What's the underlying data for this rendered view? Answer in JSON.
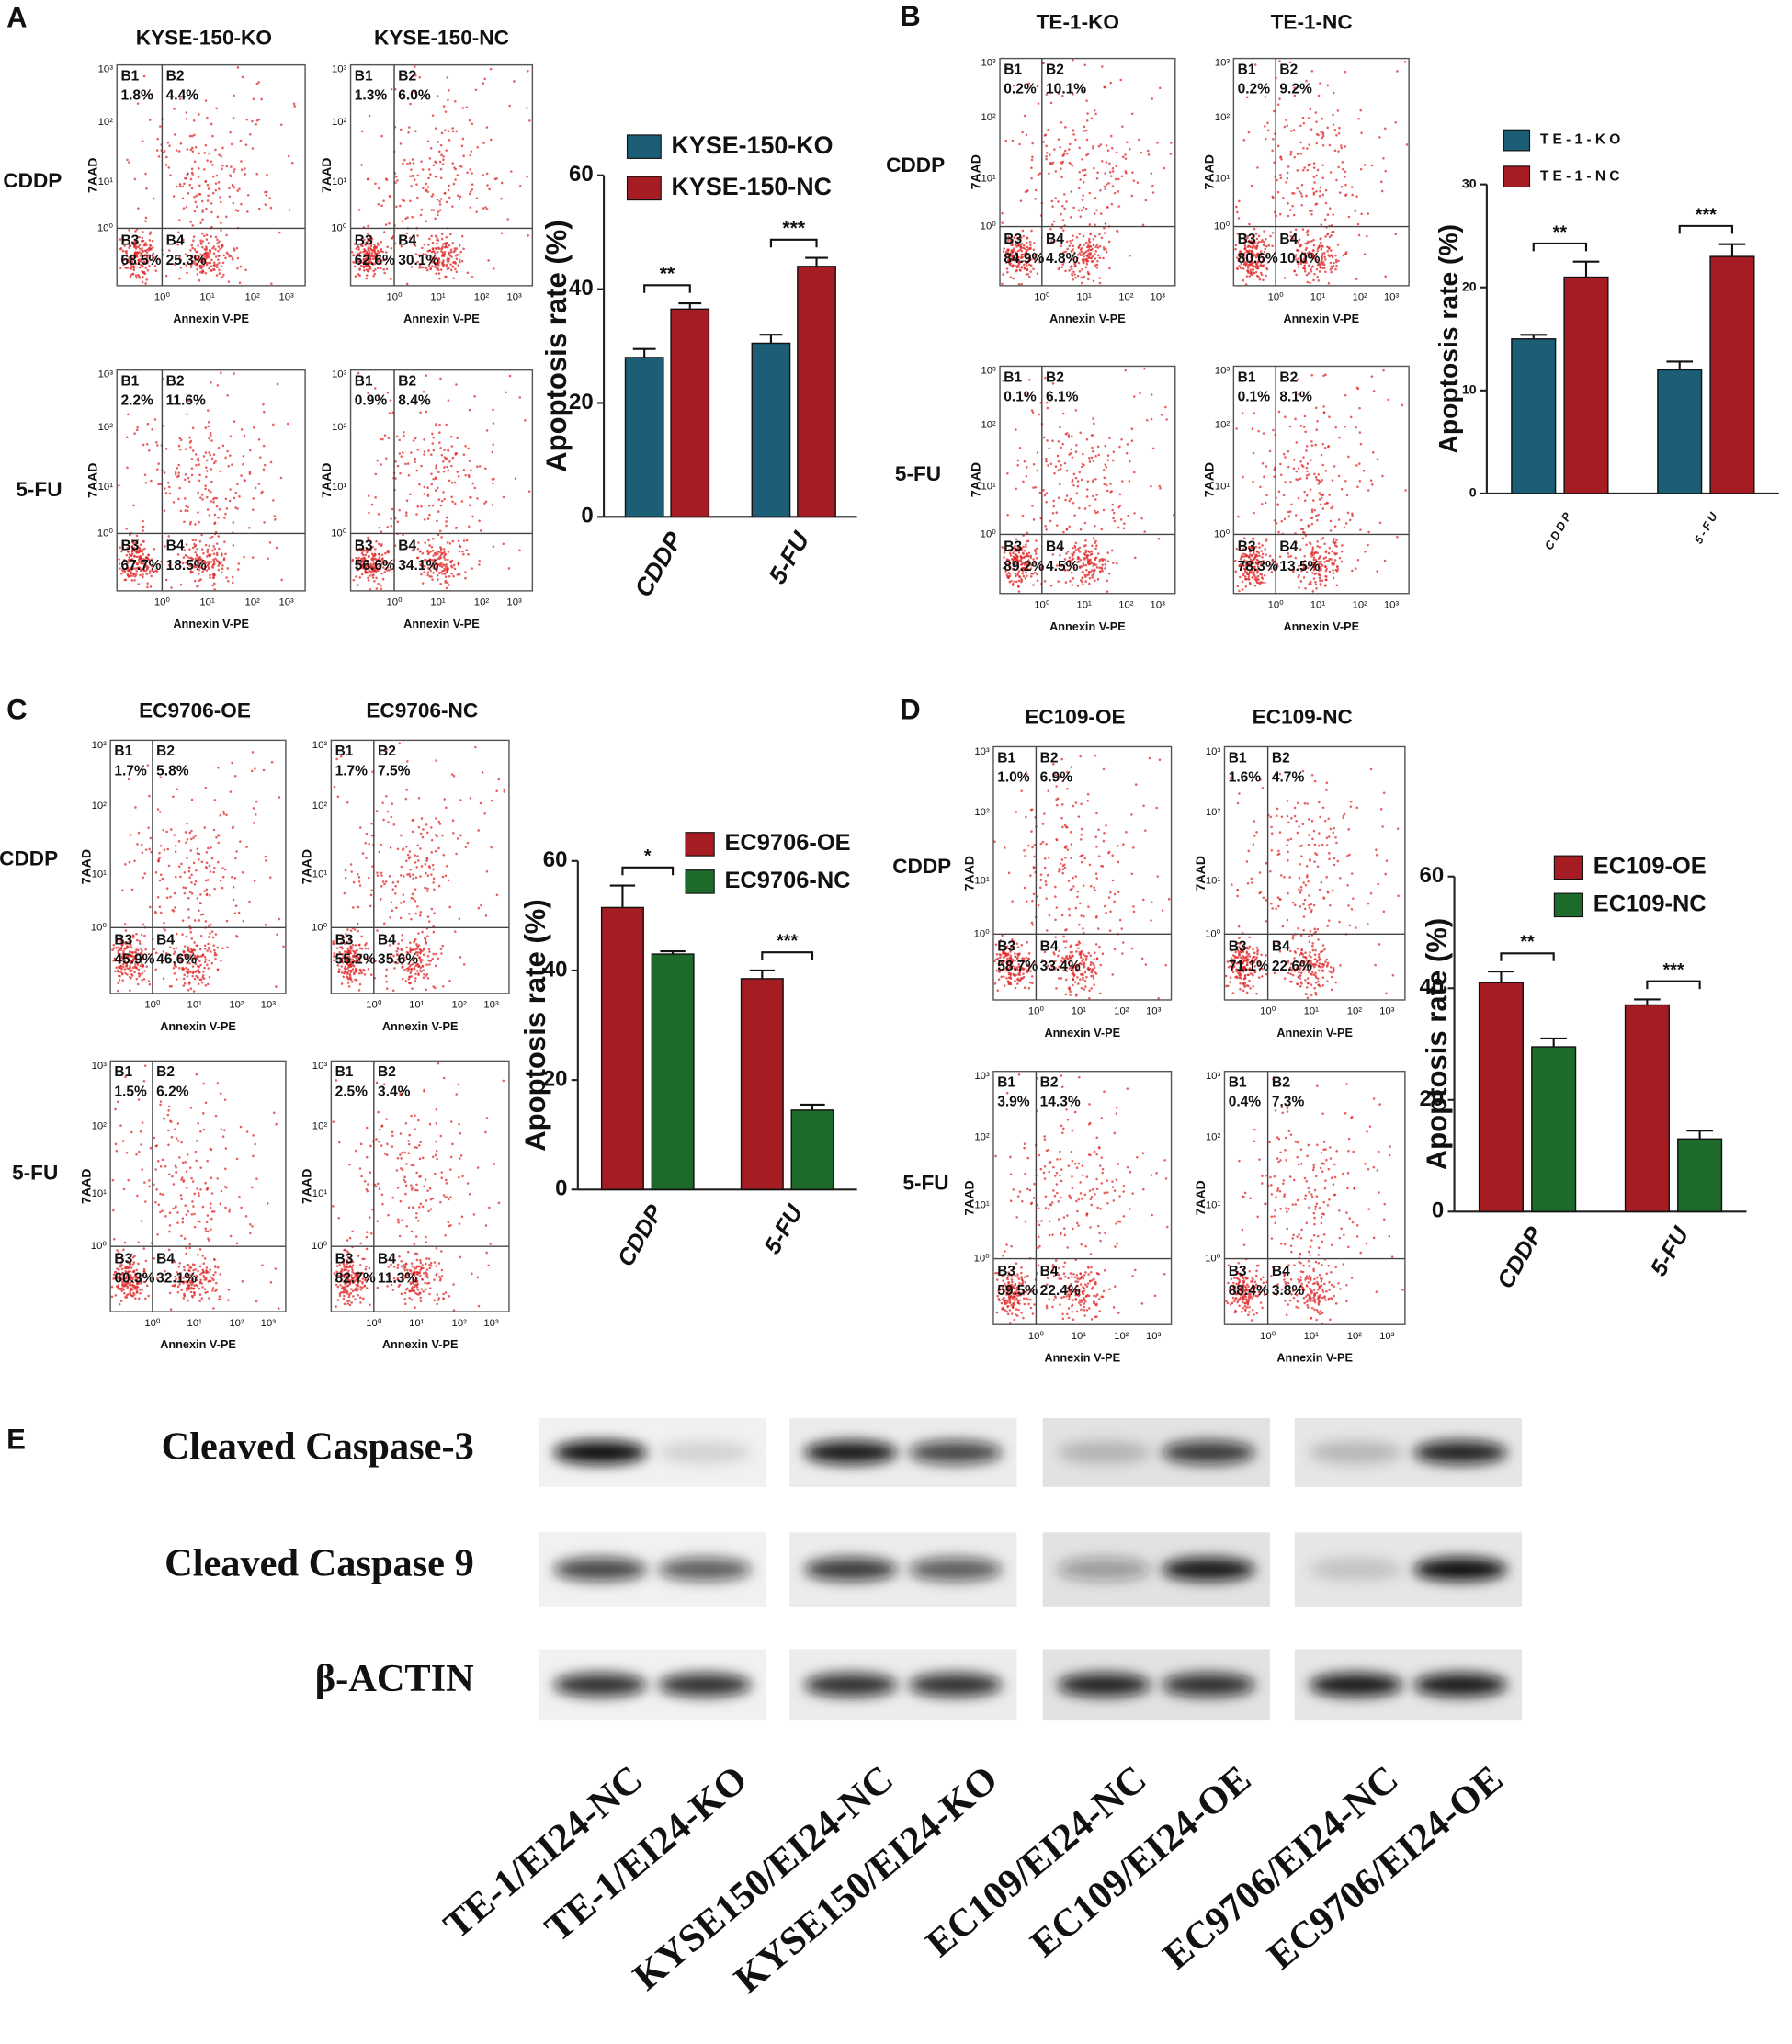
{
  "chart_data": [
    {
      "type": "bar",
      "ylabel": "Apoptosis rate (%)",
      "categories": [
        "CDDP",
        "5-FU"
      ],
      "series": [
        {
          "name": "KYSE-150-KO",
          "color": "#1b5e75",
          "values": [
            28,
            30.5
          ],
          "errors": [
            1.5,
            1.5
          ]
        },
        {
          "name": "KYSE-150-NC",
          "color": "#a51d23",
          "values": [
            36.5,
            44
          ],
          "errors": [
            1,
            1.5
          ]
        }
      ],
      "ylim": [
        0,
        60
      ],
      "yticks": [
        0,
        20,
        40,
        60
      ],
      "annotations": [
        "**",
        "***"
      ]
    },
    {
      "type": "bar",
      "ylabel": "Apoptosis rate (%)",
      "categories": [
        "CDDP",
        "5-FU"
      ],
      "series": [
        {
          "name": "TE-1-KO",
          "color": "#1b5e75",
          "values": [
            15,
            12
          ],
          "errors": [
            0.4,
            0.8
          ]
        },
        {
          "name": "TE-1-NC",
          "color": "#a51d23",
          "values": [
            21,
            23
          ],
          "errors": [
            1.5,
            1.2
          ]
        }
      ],
      "ylim": [
        0,
        30
      ],
      "yticks": [
        0,
        10,
        20,
        30
      ],
      "annotations": [
        "**",
        "***"
      ]
    },
    {
      "type": "bar",
      "ylabel": "Apoptosis rate (%)",
      "categories": [
        "CDDP",
        "5-FU"
      ],
      "series": [
        {
          "name": "EC9706-OE",
          "color": "#a51d23",
          "values": [
            51.5,
            38.5
          ],
          "errors": [
            4,
            1.5
          ]
        },
        {
          "name": "EC9706-NC",
          "color": "#1e6a2b",
          "values": [
            43,
            14.5
          ],
          "errors": [
            0.5,
            1
          ]
        }
      ],
      "ylim": [
        0,
        60
      ],
      "yticks": [
        0,
        20,
        40,
        60
      ],
      "annotations": [
        "*",
        "***"
      ]
    },
    {
      "type": "bar",
      "ylabel": "Apoptosis rate (%)",
      "categories": [
        "CDDP",
        "5-FU"
      ],
      "series": [
        {
          "name": "EC109-OE",
          "color": "#a51d23",
          "values": [
            41,
            37
          ],
          "errors": [
            2,
            1
          ]
        },
        {
          "name": "EC109-NC",
          "color": "#1e6a2b",
          "values": [
            29.5,
            13
          ],
          "errors": [
            1.5,
            1.5
          ]
        }
      ],
      "ylim": [
        0,
        60
      ],
      "yticks": [
        0,
        20,
        40,
        60
      ],
      "annotations": [
        "**",
        "***"
      ]
    }
  ],
  "flow_axes": {
    "y_label": "7AAD",
    "x_label": "Annexin V-PE",
    "quadrants": [
      "B1",
      "B2",
      "B3",
      "B4"
    ],
    "ticks": [
      "10⁰",
      "10¹",
      "10²",
      "10³"
    ]
  },
  "panels": [
    {
      "letter": "A",
      "columns": [
        "KYSE-150-KO",
        "KYSE-150-NC"
      ],
      "rows": [
        "CDDP",
        "5-FU"
      ],
      "plots": [
        [
          "1.8%",
          "4.4%",
          "68.5%",
          "25.3%"
        ],
        [
          "1.3%",
          "6.0%",
          "62.6%",
          "30.1%"
        ],
        [
          "2.2%",
          "11.6%",
          "67.7%",
          "18.5%"
        ],
        [
          "0.9%",
          "8.4%",
          "56.6%",
          "34.1%"
        ]
      ]
    },
    {
      "letter": "B",
      "columns": [
        "TE-1-KO",
        "TE-1-NC"
      ],
      "rows": [
        "CDDP",
        "5-FU"
      ],
      "plots": [
        [
          "0.2%",
          "10.1%",
          "84.9%",
          "4.8%"
        ],
        [
          "0.2%",
          "9.2%",
          "80.6%",
          "10.0%"
        ],
        [
          "0.1%",
          "6.1%",
          "89.2%",
          "4.5%"
        ],
        [
          "0.1%",
          "8.1%",
          "78.3%",
          "13.5%"
        ]
      ]
    },
    {
      "letter": "C",
      "columns": [
        "EC9706-OE",
        "EC9706-NC"
      ],
      "rows": [
        "CDDP",
        "5-FU"
      ],
      "plots": [
        [
          "1.7%",
          "5.8%",
          "45.9%",
          "46.6%"
        ],
        [
          "1.7%",
          "7.5%",
          "55.2%",
          "35.6%"
        ],
        [
          "1.5%",
          "6.2%",
          "60.3%",
          "32.1%"
        ],
        [
          "2.5%",
          "3.4%",
          "82.7%",
          "11.3%"
        ]
      ]
    },
    {
      "letter": "D",
      "columns": [
        "EC109-OE",
        "EC109-NC"
      ],
      "rows": [
        "CDDP",
        "5-FU"
      ],
      "plots": [
        [
          "1.0%",
          "6.9%",
          "58.7%",
          "33.4%"
        ],
        [
          "1.6%",
          "4.7%",
          "71.1%",
          "22.6%"
        ],
        [
          "3.9%",
          "14.3%",
          "59.5%",
          "22.4%"
        ],
        [
          "0.4%",
          "7.3%",
          "88.4%",
          "3.8%"
        ]
      ]
    }
  ],
  "blot": {
    "letter": "E",
    "rows": [
      "Cleaved Caspase-3",
      "Cleaved Caspase 9",
      "β-ACTIN"
    ],
    "lanes": [
      "TE-1/EI24-NC",
      "TE-1/EI24-KO",
      "KYSE150/EI24-NC",
      "KYSE150/EI24-KO",
      "EC109/EI24-NC",
      "EC109/EI24-OE",
      "EC9706/EI24-NC",
      "EC9706/EI24-OE"
    ]
  }
}
